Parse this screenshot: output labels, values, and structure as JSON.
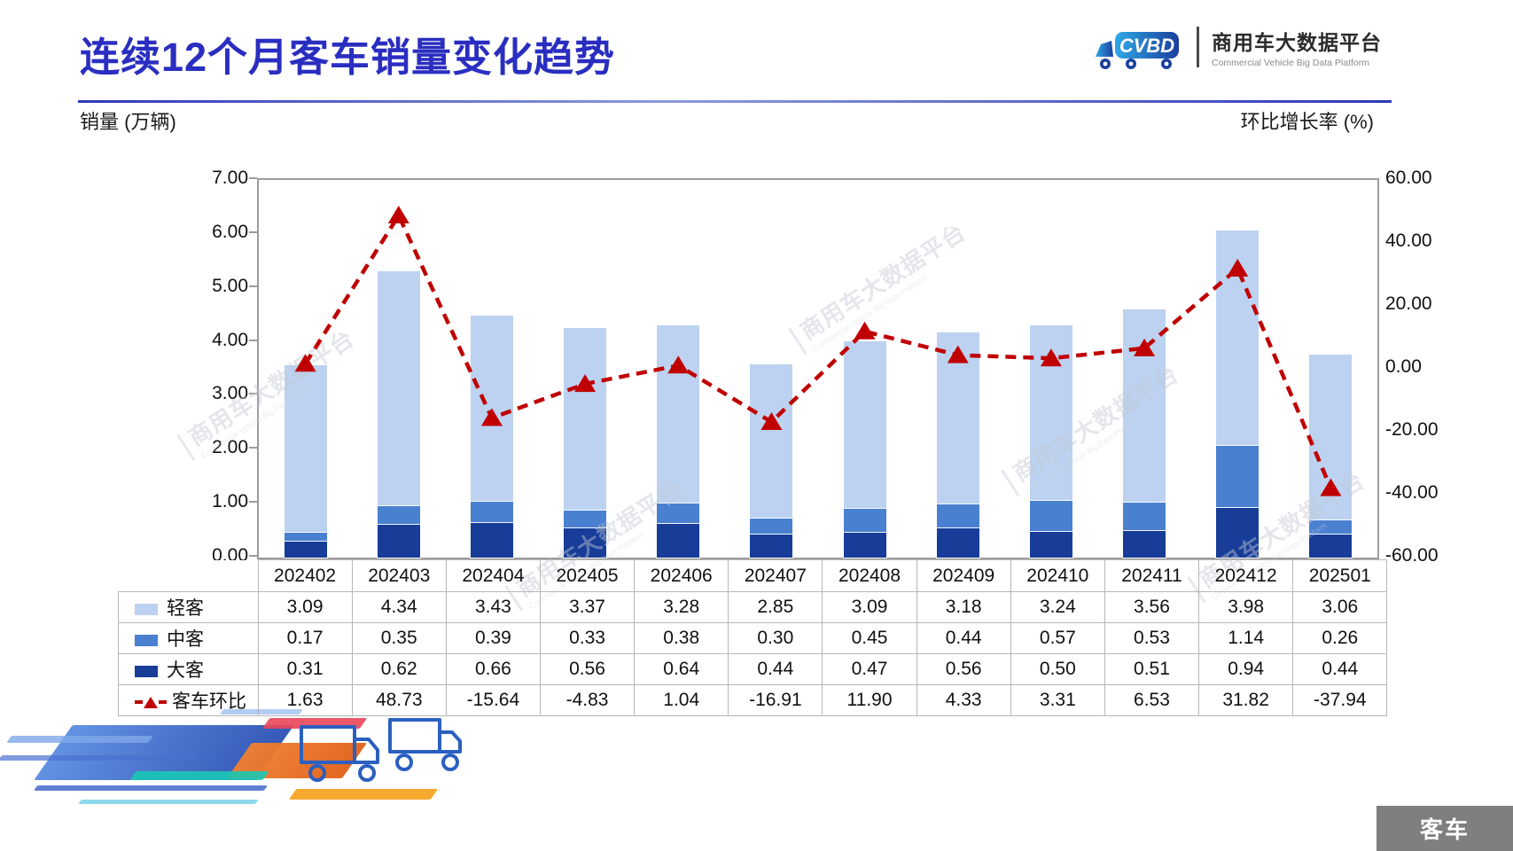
{
  "page": {
    "title": "连续12个月客车销量变化趋势"
  },
  "logo": {
    "mark": "CVBD",
    "brand_cn": "商用车大数据平台",
    "brand_en": "Commercial Vehicle Big Data Platform"
  },
  "watermark": {
    "cn": "商用车大数据平台",
    "en": "Commercial Vehicle Big Data Platform"
  },
  "footer": {
    "badge": "客车"
  },
  "chart_data": {
    "type": "bar",
    "subtype": "stacked-bars-with-line",
    "title": "连续12个月客车销量变化趋势",
    "categories": [
      "202402",
      "202403",
      "202404",
      "202405",
      "202406",
      "202407",
      "202408",
      "202409",
      "202410",
      "202411",
      "202412",
      "202501"
    ],
    "left_axis": {
      "label": "销量 (万辆)",
      "min": 0,
      "max": 7,
      "ticks": [
        "7.00",
        "6.00",
        "5.00",
        "4.00",
        "3.00",
        "2.00",
        "1.00",
        "0.00"
      ]
    },
    "right_axis": {
      "label": "环比增长率 (%)",
      "min": -60,
      "max": 60,
      "ticks": [
        "60.00",
        "40.00",
        "20.00",
        "0.00",
        "-20.00",
        "-40.00",
        "-60.00"
      ]
    },
    "grid": false,
    "legend_position": "table-left",
    "stack_order_bottom_to_top": [
      "大客",
      "中客",
      "轻客"
    ],
    "series": [
      {
        "name": "轻客",
        "type": "bar",
        "color": "#BCD2F0",
        "values": [
          3.09,
          4.34,
          3.43,
          3.37,
          3.28,
          2.85,
          3.09,
          3.18,
          3.24,
          3.56,
          3.98,
          3.06
        ]
      },
      {
        "name": "中客",
        "type": "bar",
        "color": "#4A80D0",
        "values": [
          0.17,
          0.35,
          0.39,
          0.33,
          0.38,
          0.3,
          0.45,
          0.44,
          0.57,
          0.53,
          1.14,
          0.26
        ]
      },
      {
        "name": "大客",
        "type": "bar",
        "color": "#173D99",
        "values": [
          0.31,
          0.62,
          0.66,
          0.56,
          0.64,
          0.44,
          0.47,
          0.56,
          0.5,
          0.51,
          0.94,
          0.44
        ]
      },
      {
        "name": "客车环比",
        "type": "line",
        "color": "#C00000",
        "values": [
          1.63,
          48.73,
          -15.64,
          -4.83,
          1.04,
          -16.91,
          11.9,
          4.33,
          3.31,
          6.53,
          31.82,
          -37.94
        ]
      }
    ]
  }
}
